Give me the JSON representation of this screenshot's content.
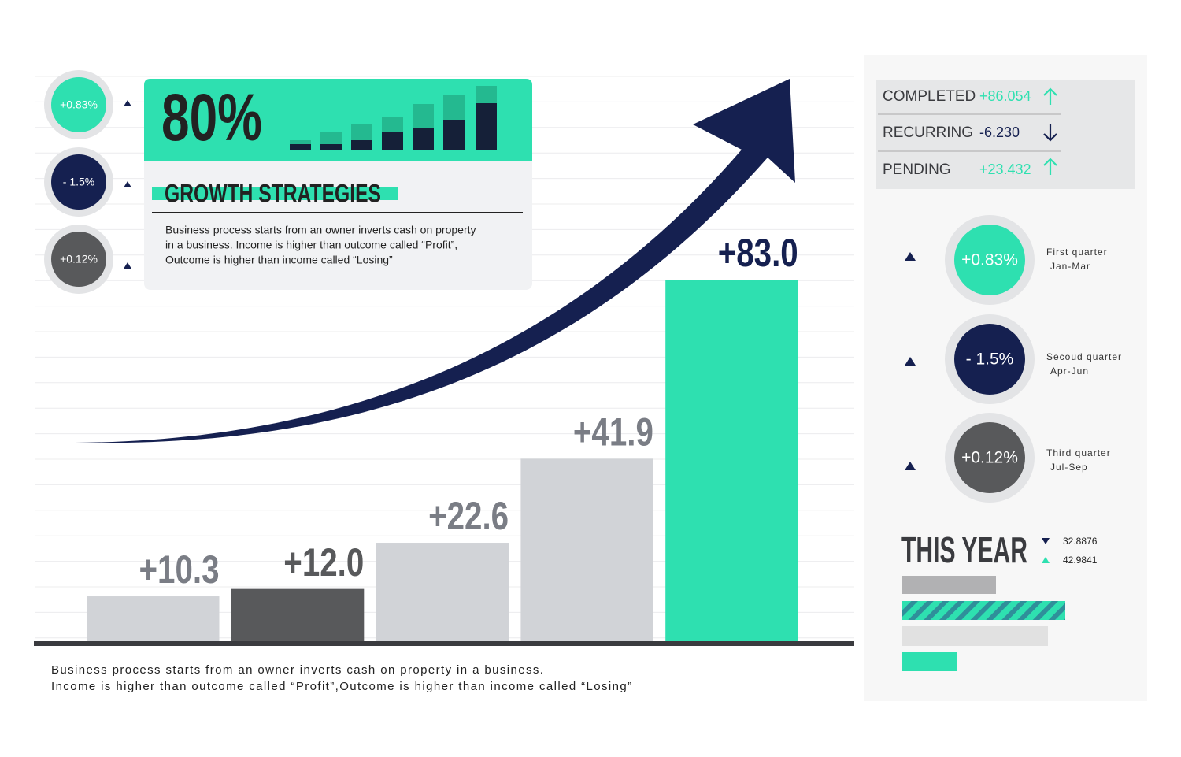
{
  "chart_data": {
    "type": "bar",
    "categories": [
      null,
      null,
      null,
      null,
      null
    ],
    "values": [
      10.3,
      12.0,
      22.6,
      41.9,
      83.0
    ],
    "value_labels": [
      "+10.3",
      "+12.0",
      "+22.6",
      "+41.9",
      "+83.0"
    ],
    "colors": [
      "#d1d3d7",
      "#58595b",
      "#d1d3d7",
      "#d1d3d7",
      "#2ee0b0"
    ],
    "label_colors": [
      "#7a7d85",
      "#58595b",
      "#7a7d85",
      "#7a7d85",
      "#152050"
    ]
  },
  "card": {
    "headline": "80%",
    "title": "GROWTH STRATEGIES",
    "text": [
      "Business process starts from an owner inverts cash on property",
      "in a business. Income is higher than outcome called “Profit”,",
      "Outcome is higher than income called “Losing”"
    ]
  },
  "left_badges": [
    "+0.83%",
    "- 1.5%",
    "+0.12%"
  ],
  "stats": [
    {
      "label": "COMPLETED",
      "value": "+86.054"
    },
    {
      "label": "RECURRING",
      "value": "-6.230"
    },
    {
      "label": "PENDING",
      "value": "+23.432"
    }
  ],
  "quarters": [
    {
      "badge": "+0.83%",
      "name": "First quarter",
      "period": "Jan-Mar"
    },
    {
      "badge": "- 1.5%",
      "name": "Secoud quarter",
      "period": "Apr-Jun"
    },
    {
      "badge": "+0.12%",
      "name": "Third quarter",
      "period": "Jul-Sep"
    }
  ],
  "this_year": {
    "title": "THIS YEAR",
    "values": [
      "32.8876",
      "42.9841"
    ]
  },
  "footnote": [
    "Business process starts from an owner inverts cash on property in a business.",
    "Income is higher than outcome called “Profit”,Outcome is higher than income called “Losing”"
  ]
}
